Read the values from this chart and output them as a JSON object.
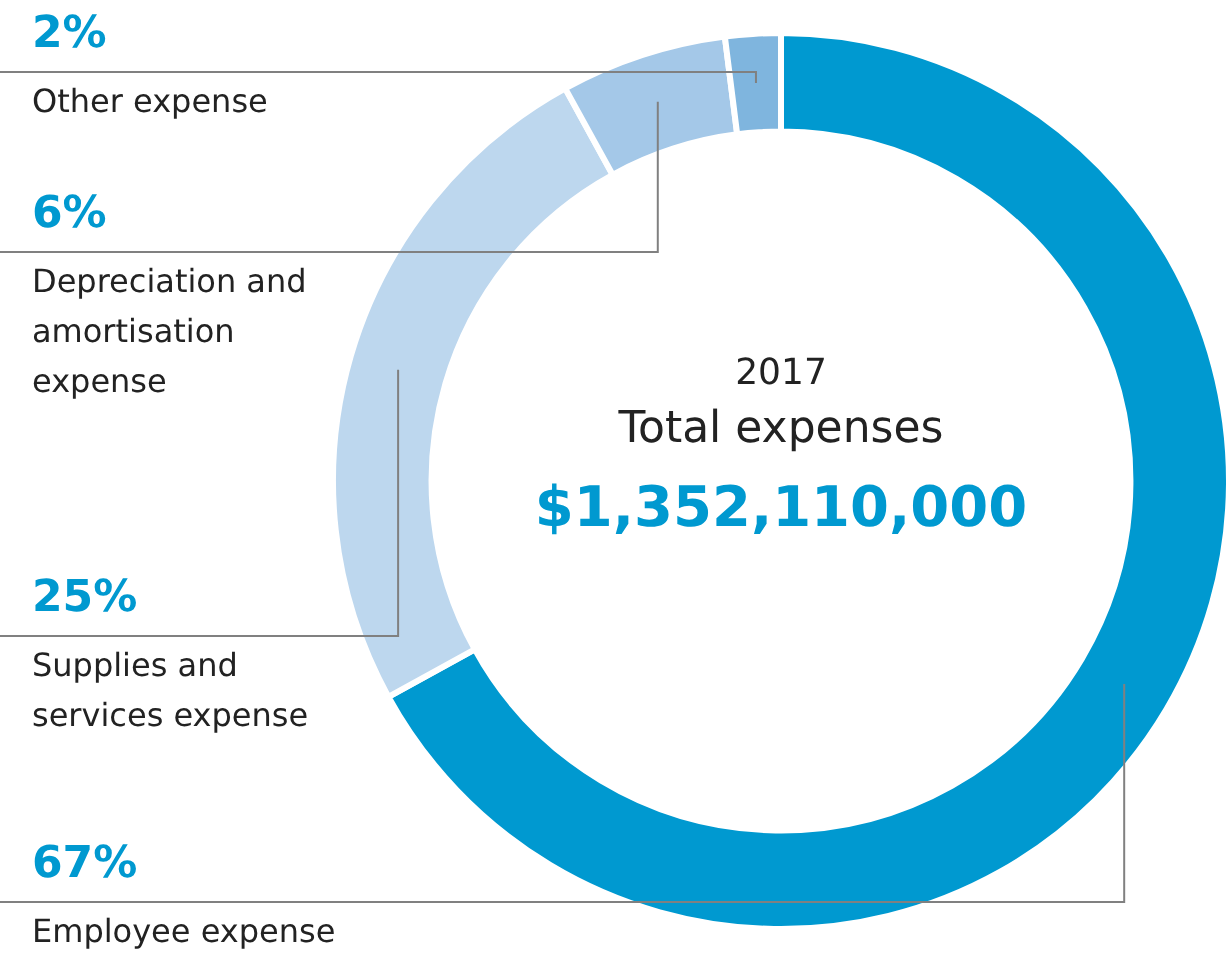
{
  "chart_data": {
    "type": "donut",
    "categories": [
      "Employee expense",
      "Supplies and services expense",
      "Depreciation and amortisation expense",
      "Other expense"
    ],
    "values": [
      67,
      25,
      6,
      2
    ],
    "colors": [
      "#0099d0",
      "#bdd7ee",
      "#a4c8e8",
      "#7fb5de"
    ],
    "value_labels": [
      "67%",
      "25%",
      "6%",
      "2%"
    ],
    "annotations": [
      "2017",
      "Total expenses",
      "$1,352,110,000"
    ],
    "legend": false
  }
}
